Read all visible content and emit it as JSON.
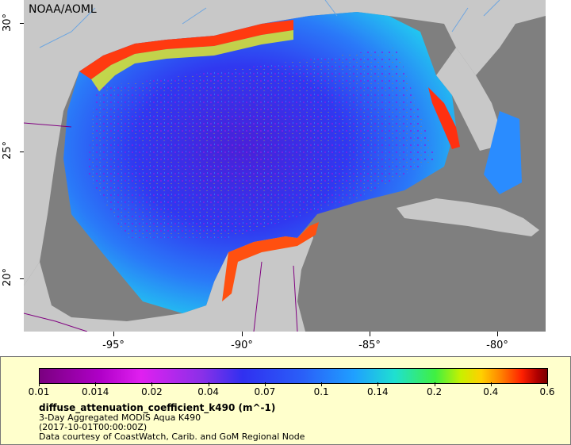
{
  "map": {
    "agency_label": "NOAA/AOML",
    "lat_ticks": [
      "30°",
      "25°",
      "20°"
    ],
    "lon_ticks": [
      "-95°",
      "-90°",
      "-85°",
      "-80°"
    ],
    "colors": {
      "land": "#c8c8c8",
      "no_data": "#7f7f7f",
      "rivers": "#6ea6e0",
      "borders": "#800080"
    }
  },
  "legend": {
    "colorbar_ticks": [
      "0.01",
      "0.014",
      "0.02",
      "0.04",
      "0.07",
      "0.1",
      "0.14",
      "0.2",
      "0.4",
      "0.6"
    ],
    "variable_name": "diffuse_attenuation_coefficient_k490 (m^-1)",
    "description": "3-Day Aggregated MODIS Aqua K490",
    "time": "(2017-10-01T00:00:00Z)",
    "credit": "Data courtesy of CoastWatch, Carib. and GoM Regional Node"
  }
}
